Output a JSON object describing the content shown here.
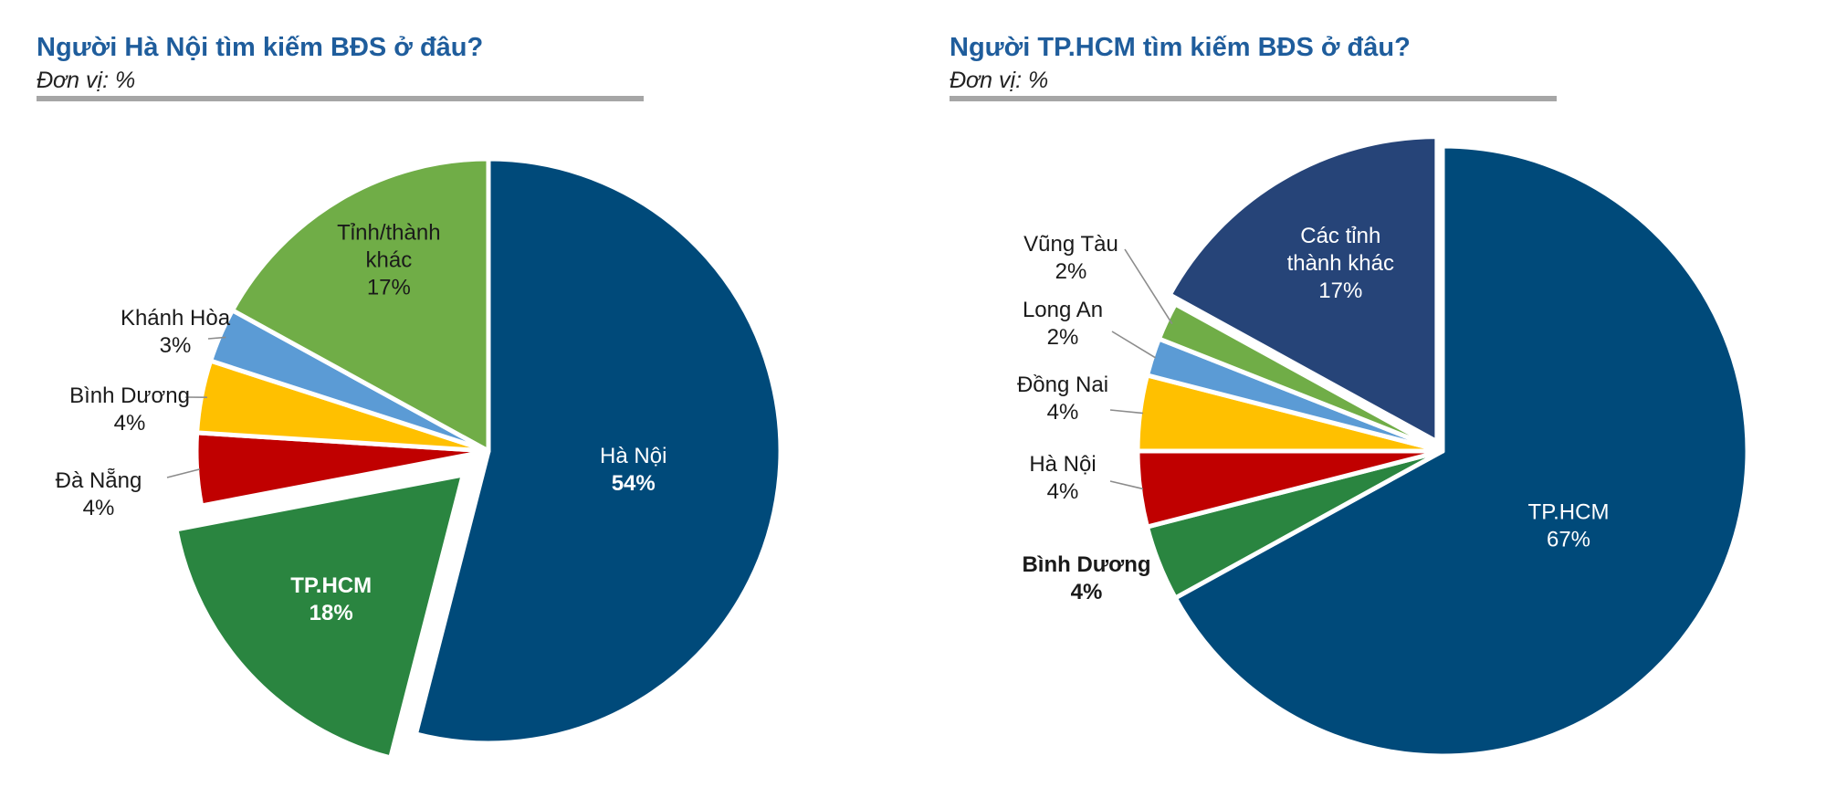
{
  "chart_data": [
    {
      "type": "pie",
      "title": "Người Hà Nội tìm kiếm BĐS ở đâu?",
      "subtitle": "Đơn vị: %",
      "slices": [
        {
          "label": "Hà Nội",
          "value": 54,
          "value_text": "54%",
          "color": "#004a7a",
          "label_color": "#ffffff",
          "label_weight": "normal",
          "value_weight": "bold"
        },
        {
          "label": "TP.HCM",
          "value": 18,
          "value_text": "18%",
          "color": "#2a8540",
          "label_color": "#ffffff",
          "label_weight": "bold",
          "value_weight": "bold",
          "exploded": true
        },
        {
          "label": "Đà Nẵng",
          "value": 4,
          "value_text": "4%",
          "color": "#c00000",
          "label_color": "#1a1a1a",
          "label_weight": "normal",
          "value_weight": "normal"
        },
        {
          "label": "Bình Dương",
          "value": 4,
          "value_text": "4%",
          "color": "#ffc000",
          "label_color": "#1a1a1a",
          "label_weight": "normal",
          "value_weight": "normal"
        },
        {
          "label": "Khánh Hòa",
          "value": 3,
          "value_text": "3%",
          "color": "#5b9bd5",
          "label_color": "#1a1a1a",
          "label_weight": "normal",
          "value_weight": "normal"
        },
        {
          "label": "Tỉnh/thành khác",
          "label_lines": [
            "Tỉnh/thành",
            "khác"
          ],
          "value": 17,
          "value_text": "17%",
          "color": "#70ad47",
          "label_color": "#1a1a1a",
          "label_weight": "normal",
          "value_weight": "normal"
        }
      ]
    },
    {
      "type": "pie",
      "title": "Người TP.HCM tìm kiếm BĐS ở đâu?",
      "subtitle": "Đơn vị: %",
      "slices": [
        {
          "label": "TP.HCM",
          "value": 67,
          "value_text": "67%",
          "color": "#004a7a",
          "label_color": "#ffffff",
          "label_weight": "normal",
          "value_weight": "normal"
        },
        {
          "label": "Bình Dương",
          "value": 4,
          "value_text": "4%",
          "color": "#2a8540",
          "label_color": "#1a1a1a",
          "label_weight": "bold",
          "value_weight": "bold"
        },
        {
          "label": "Hà Nội",
          "value": 4,
          "value_text": "4%",
          "color": "#c00000",
          "label_color": "#1a1a1a",
          "label_weight": "normal",
          "value_weight": "normal"
        },
        {
          "label": "Đồng Nai",
          "value": 4,
          "value_text": "4%",
          "color": "#ffc000",
          "label_color": "#1a1a1a",
          "label_weight": "normal",
          "value_weight": "normal"
        },
        {
          "label": "Long An",
          "value": 2,
          "value_text": "2%",
          "color": "#5b9bd5",
          "label_color": "#1a1a1a",
          "label_weight": "normal",
          "value_weight": "normal"
        },
        {
          "label": "Vũng Tàu",
          "value": 2,
          "value_text": "2%",
          "color": "#70ad47",
          "label_color": "#1a1a1a",
          "label_weight": "normal",
          "value_weight": "normal"
        },
        {
          "label": "Các tỉnh thành khác",
          "label_lines": [
            "Các tỉnh",
            "thành khác"
          ],
          "value": 17,
          "value_text": "17%",
          "color": "#264478",
          "label_color": "#ffffff",
          "label_weight": "normal",
          "value_weight": "normal",
          "exploded": true
        }
      ]
    }
  ]
}
